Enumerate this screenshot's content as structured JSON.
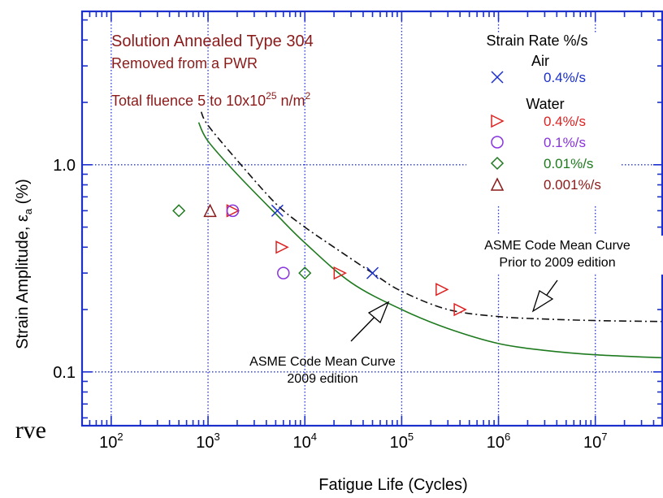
{
  "chart_data": {
    "type": "scatter",
    "title_lines": [
      {
        "text": "Solution Annealed Type 304",
        "color": "#8b1a1a"
      },
      {
        "text": "Removed from a PWR",
        "color": "#8b1a1a"
      }
    ],
    "fluence": {
      "prefix": "Total fluence 5 to 10x10",
      "sup": "25",
      "middle": " n/m",
      "sup2": "2",
      "color": "#8b1a1a"
    },
    "xlabel": "Fatigue Life (Cycles)",
    "ylabel": {
      "main": "Strain Amplitude,  ε",
      "sub": "a",
      "unit": " (%)"
    },
    "x_scale": "log",
    "y_scale": "log",
    "xlim": [
      50,
      50000000
    ],
    "ylim": [
      0.055,
      5.5
    ],
    "x_ticks": [
      {
        "value": 100,
        "base": "10",
        "exp": "2"
      },
      {
        "value": 1000,
        "base": "10",
        "exp": "3"
      },
      {
        "value": 10000,
        "base": "10",
        "exp": "4"
      },
      {
        "value": 100000,
        "base": "10",
        "exp": "5"
      },
      {
        "value": 1000000,
        "base": "10",
        "exp": "6"
      },
      {
        "value": 10000000,
        "base": "10",
        "exp": "7"
      }
    ],
    "y_ticks": [
      {
        "value": 0.1,
        "label": "0.1"
      },
      {
        "value": 1.0,
        "label": "1.0"
      }
    ],
    "grid": true,
    "grid_color": "#2233dd",
    "axis_color": "#1a2fcc",
    "legend": {
      "position": "top-right",
      "title": "Strain Rate %/s",
      "groups": [
        {
          "name": "Air",
          "entries": [
            {
              "series": 0,
              "label": "0.4%/s"
            }
          ]
        },
        {
          "name": "Water",
          "entries": [
            {
              "series": 1,
              "label": "0.4%/s"
            },
            {
              "series": 2,
              "label": "0.1%/s"
            },
            {
              "series": 3,
              "label": "0.01%/s"
            },
            {
              "series": 4,
              "label": "0.001%/s"
            }
          ]
        }
      ]
    },
    "series": [
      {
        "name": "0.4%/s",
        "marker": "x",
        "color": "#1a2fcc",
        "points": [
          [
            5200,
            0.6
          ],
          [
            50000,
            0.3
          ]
        ]
      },
      {
        "name": "0.4%/s",
        "marker": "triangle-right",
        "color": "#dd2222",
        "points": [
          [
            1800,
            0.6
          ],
          [
            5800,
            0.4
          ],
          [
            23000,
            0.3
          ],
          [
            260000,
            0.25
          ],
          [
            400000,
            0.2
          ]
        ]
      },
      {
        "name": "0.1%/s",
        "marker": "circle",
        "color": "#8833dd",
        "points": [
          [
            1800,
            0.6
          ],
          [
            6000,
            0.3
          ]
        ]
      },
      {
        "name": "0.01%/s",
        "marker": "diamond",
        "color": "#1e7a1e",
        "points": [
          [
            500,
            0.6
          ],
          [
            10000,
            0.3
          ]
        ]
      },
      {
        "name": "0.001%/s",
        "marker": "triangle-up",
        "color": "#8b1a1a",
        "points": [
          [
            1050,
            0.6
          ]
        ]
      }
    ],
    "curves": [
      {
        "name": "ASME Code Mean Curve 2009 edition",
        "style": "solid",
        "color": "#1e7a1e",
        "points": [
          [
            800,
            1.6
          ],
          [
            1000,
            1.3
          ],
          [
            2000,
            0.9
          ],
          [
            5000,
            0.58
          ],
          [
            10000,
            0.42
          ],
          [
            30000,
            0.27
          ],
          [
            100000,
            0.2
          ],
          [
            300000,
            0.162
          ],
          [
            1000000,
            0.137
          ],
          [
            3000000,
            0.127
          ],
          [
            10000000,
            0.121
          ],
          [
            50000000,
            0.117
          ]
        ]
      },
      {
        "name": "ASME Code Mean Curve Prior to 2009 edition",
        "style": "dashdot",
        "color": "#111111",
        "points": [
          [
            850,
            1.8
          ],
          [
            1000,
            1.55
          ],
          [
            2000,
            1.05
          ],
          [
            5000,
            0.65
          ],
          [
            10000,
            0.5
          ],
          [
            20000,
            0.4
          ],
          [
            50000,
            0.3
          ],
          [
            100000,
            0.245
          ],
          [
            300000,
            0.2
          ],
          [
            1000000,
            0.185
          ],
          [
            3000000,
            0.18
          ],
          [
            10000000,
            0.177
          ],
          [
            50000000,
            0.175
          ]
        ]
      }
    ],
    "annotations": [
      {
        "lines": [
          "ASME Code Mean Curve",
          "2009 edition"
        ],
        "arrow_to": [
          90000,
          0.21
        ]
      },
      {
        "lines": [
          "ASME Code Mean Curve",
          "Prior to 2009 edition"
        ],
        "arrow_to": [
          1500000,
          0.18
        ]
      }
    ]
  },
  "cropped_text": "rve"
}
